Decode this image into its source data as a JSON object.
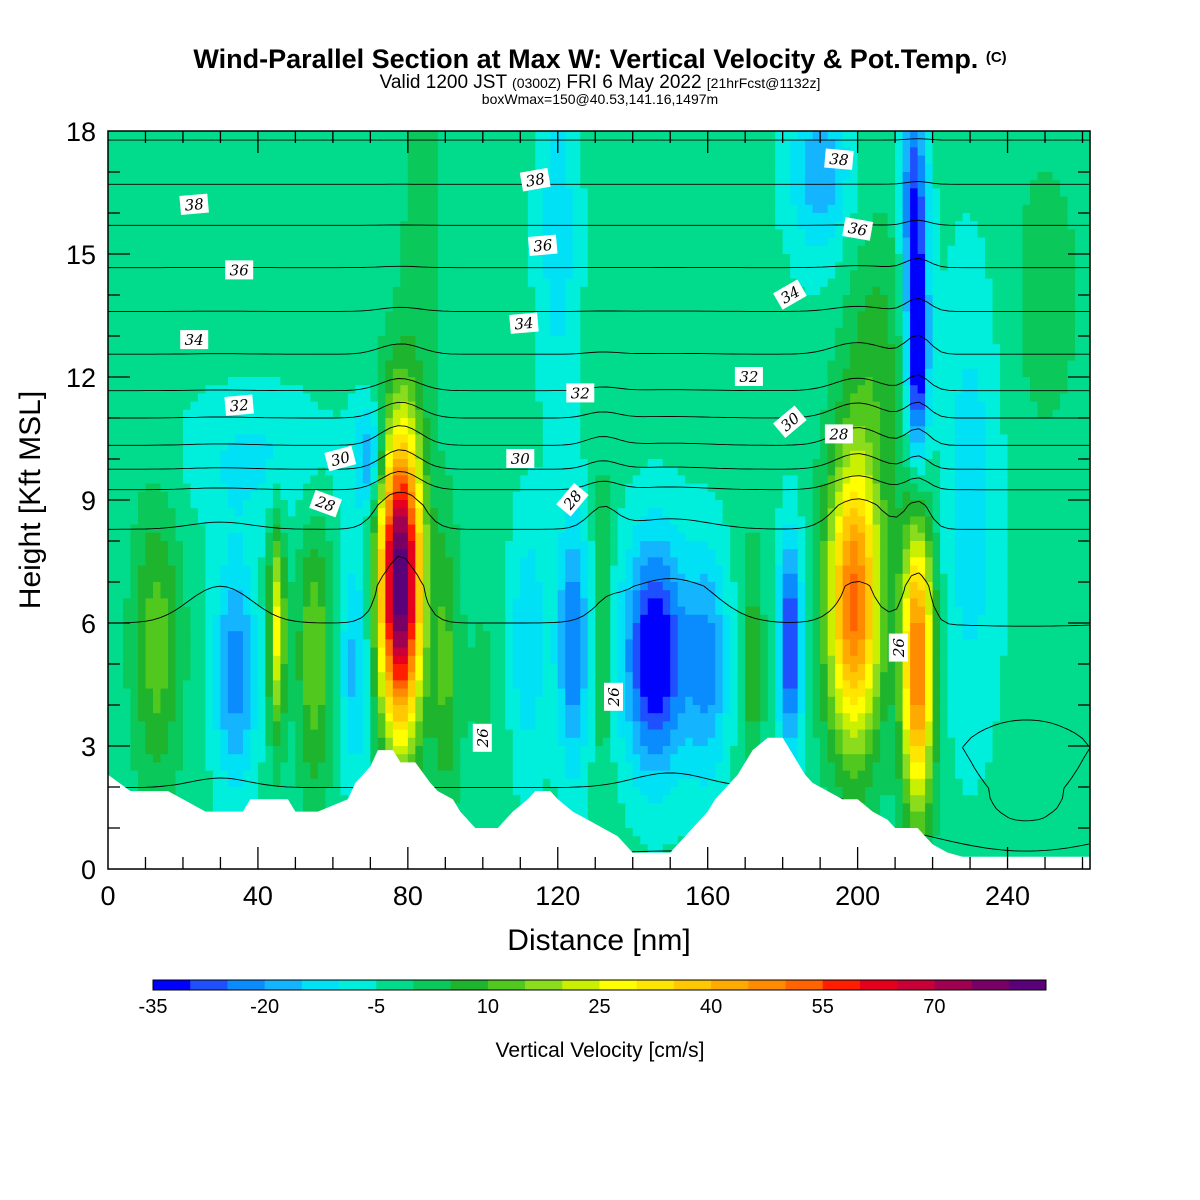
{
  "title": {
    "main": "Wind-Parallel Section at Max W: Vertical Velocity & Pot.Temp.",
    "mark": "(C)",
    "valid_prefix": "Valid 1200 JST",
    "valid_utc": "(0300Z)",
    "valid_date": "FRI 6 May 2022",
    "forecast": "[21hrFcst@1132z]",
    "boxinfo": "boxWmax=150@40.53,141.16,1497m"
  },
  "chart_data": {
    "type": "heatmap",
    "xlabel": "Distance [nm]",
    "ylabel": "Height [Kft MSL]",
    "xlim": [
      0,
      262
    ],
    "ylim": [
      0,
      18
    ],
    "x_ticks": [
      {
        "value": 0,
        "label": "0"
      },
      {
        "value": 40,
        "label": "40"
      },
      {
        "value": 80,
        "label": "80"
      },
      {
        "value": 120,
        "label": "120"
      },
      {
        "value": 160,
        "label": "160"
      },
      {
        "value": 200,
        "label": "200"
      },
      {
        "value": 240,
        "label": "240"
      }
    ],
    "y_ticks": [
      {
        "value": 0,
        "label": "0"
      },
      {
        "value": 3,
        "label": "3"
      },
      {
        "value": 6,
        "label": "6"
      },
      {
        "value": 9,
        "label": "9"
      },
      {
        "value": 12,
        "label": "12"
      },
      {
        "value": 15,
        "label": "15"
      },
      {
        "value": 18,
        "label": "18"
      }
    ],
    "colorbar": {
      "title": "Vertical Velocity [cm/s]",
      "min": -35,
      "max": 85,
      "colors": [
        "#0000ff",
        "#1f50ff",
        "#0a8cff",
        "#14b4ff",
        "#00e1f5",
        "#00eedc",
        "#00dc8c",
        "#0ac85a",
        "#1eb42d",
        "#50c81e",
        "#8cdc1e",
        "#c8f000",
        "#ffff00",
        "#ffe600",
        "#ffc800",
        "#ffaa00",
        "#ff8c00",
        "#ff6400",
        "#ff1e00",
        "#e6001e",
        "#c80037",
        "#a00050",
        "#780064",
        "#5a0078"
      ],
      "labels": [
        {
          "value": -35,
          "label": "-35"
        },
        {
          "value": -20,
          "label": "-20"
        },
        {
          "value": -5,
          "label": "-5"
        },
        {
          "value": 10,
          "label": "10"
        },
        {
          "value": 25,
          "label": "25"
        },
        {
          "value": 40,
          "label": "40"
        },
        {
          "value": 55,
          "label": "55"
        },
        {
          "value": 70,
          "label": "70"
        }
      ]
    },
    "terrain": [
      [
        0,
        2.3
      ],
      [
        3,
        2.1
      ],
      [
        6,
        1.9
      ],
      [
        16,
        1.9
      ],
      [
        20,
        1.7
      ],
      [
        26,
        1.4
      ],
      [
        30,
        1.4
      ],
      [
        34,
        1.4
      ],
      [
        36,
        1.4
      ],
      [
        38,
        1.7
      ],
      [
        48,
        1.7
      ],
      [
        50,
        1.4
      ],
      [
        56,
        1.4
      ],
      [
        64,
        1.7
      ],
      [
        66,
        2.1
      ],
      [
        68,
        2.3
      ],
      [
        70,
        2.5
      ],
      [
        72,
        2.9
      ],
      [
        76,
        2.9
      ],
      [
        78,
        2.6
      ],
      [
        82,
        2.6
      ],
      [
        86,
        2.1
      ],
      [
        88,
        1.9
      ],
      [
        92,
        1.7
      ],
      [
        94,
        1.4
      ],
      [
        98,
        1.0
      ],
      [
        104,
        1.0
      ],
      [
        108,
        1.4
      ],
      [
        112,
        1.7
      ],
      [
        114,
        1.9
      ],
      [
        118,
        1.9
      ],
      [
        120,
        1.7
      ],
      [
        124,
        1.4
      ],
      [
        128,
        1.2
      ],
      [
        132,
        1.0
      ],
      [
        136,
        0.8
      ],
      [
        140,
        0.4
      ],
      [
        150,
        0.4
      ],
      [
        152,
        0.6
      ],
      [
        154,
        0.8
      ],
      [
        156,
        1.0
      ],
      [
        158,
        1.2
      ],
      [
        160,
        1.4
      ],
      [
        162,
        1.7
      ],
      [
        164,
        1.9
      ],
      [
        166,
        2.1
      ],
      [
        168,
        2.3
      ],
      [
        170,
        2.6
      ],
      [
        172,
        2.9
      ],
      [
        176,
        3.2
      ],
      [
        180,
        3.2
      ],
      [
        182,
        2.9
      ],
      [
        184,
        2.6
      ],
      [
        186,
        2.3
      ],
      [
        188,
        2.1
      ],
      [
        192,
        1.9
      ],
      [
        196,
        1.7
      ],
      [
        200,
        1.7
      ],
      [
        204,
        1.4
      ],
      [
        208,
        1.2
      ],
      [
        210,
        1.0
      ],
      [
        216,
        1.0
      ],
      [
        220,
        0.6
      ],
      [
        224,
        0.4
      ],
      [
        228,
        0.3
      ],
      [
        262,
        0.3
      ]
    ],
    "w_field": {
      "background": -3,
      "features": [
        {
          "x": 13,
          "y": 5.5,
          "sx": 4.5,
          "sy": 2.5,
          "amp": 16
        },
        {
          "x": 34,
          "y": 4.8,
          "sx": 4,
          "sy": 2.0,
          "amp": -20
        },
        {
          "x": 45,
          "y": 5.8,
          "sx": 1.6,
          "sy": 1.8,
          "amp": 30
        },
        {
          "x": 55,
          "y": 5.2,
          "sx": 3.2,
          "sy": 2.3,
          "amp": 18
        },
        {
          "x": 66,
          "y": 5.0,
          "sx": 3,
          "sy": 2.0,
          "amp": -14
        },
        {
          "x": 78,
          "y": 7.0,
          "sx": 4,
          "sy": 2.6,
          "amp": 90
        },
        {
          "x": 70,
          "y": 10.0,
          "sx": 3,
          "sy": 1.0,
          "amp": -18
        },
        {
          "x": 90,
          "y": 5.0,
          "sx": 2.5,
          "sy": 2.5,
          "amp": 14
        },
        {
          "x": 100,
          "y": 4.5,
          "sx": 4,
          "sy": 2.0,
          "amp": 4
        },
        {
          "x": 112,
          "y": 5.5,
          "sx": 3.5,
          "sy": 2.2,
          "amp": -12
        },
        {
          "x": 124,
          "y": 5.5,
          "sx": 3,
          "sy": 2.2,
          "amp": -22
        },
        {
          "x": 132,
          "y": 6.0,
          "sx": 1.5,
          "sy": 2.5,
          "amp": 12
        },
        {
          "x": 146,
          "y": 5.2,
          "sx": 6,
          "sy": 2.0,
          "amp": -34
        },
        {
          "x": 160,
          "y": 5.0,
          "sx": 4,
          "sy": 2.0,
          "amp": -18
        },
        {
          "x": 172,
          "y": 5.0,
          "sx": 2,
          "sy": 2.0,
          "amp": 12
        },
        {
          "x": 182,
          "y": 5.5,
          "sx": 2.2,
          "sy": 1.8,
          "amp": -30
        },
        {
          "x": 199,
          "y": 6.5,
          "sx": 5,
          "sy": 2.5,
          "amp": 55
        },
        {
          "x": 216,
          "y": 5.0,
          "sx": 3,
          "sy": 2.5,
          "amp": 55
        },
        {
          "x": 216,
          "y": 12.5,
          "sx": 2,
          "sy": 2.0,
          "amp": -35
        },
        {
          "x": 215,
          "y": 16.5,
          "sx": 2.5,
          "sy": 2.0,
          "amp": -24
        },
        {
          "x": 190,
          "y": 17.0,
          "sx": 6,
          "sy": 1.5,
          "amp": -16
        },
        {
          "x": 120,
          "y": 15.5,
          "sx": 4,
          "sy": 3.0,
          "amp": -10
        },
        {
          "x": 84,
          "y": 15.5,
          "sx": 4,
          "sy": 3.0,
          "amp": 6
        },
        {
          "x": 230,
          "y": 9.0,
          "sx": 6,
          "sy": 4.0,
          "amp": -10
        },
        {
          "x": 205,
          "y": 12.5,
          "sx": 6,
          "sy": 2.5,
          "amp": 10
        },
        {
          "x": 40,
          "y": 10.0,
          "sx": 15,
          "sy": 1.2,
          "amp": -8
        },
        {
          "x": 250,
          "y": 14.0,
          "sx": 8,
          "sy": 3.0,
          "amp": 5
        }
      ]
    },
    "theta_field": {
      "contour_interval": 1,
      "label_interval": 2,
      "levels_min": 24,
      "levels_max": 40,
      "anchor": [
        [
          0,
          23.5
        ],
        [
          1,
          24.8
        ],
        [
          2,
          25.0
        ],
        [
          3,
          25.5
        ],
        [
          4,
          25.6
        ],
        [
          5,
          25.8
        ],
        [
          6,
          26.0
        ],
        [
          7,
          26.2
        ],
        [
          8,
          26.8
        ],
        [
          9,
          27.5
        ],
        [
          10,
          29.5
        ],
        [
          11,
          31.0
        ],
        [
          12,
          32.5
        ],
        [
          13,
          33.4
        ],
        [
          14,
          34.4
        ],
        [
          15,
          35.3
        ],
        [
          16,
          36.3
        ],
        [
          17,
          37.3
        ],
        [
          18,
          38.2
        ]
      ],
      "perturbations": [
        {
          "x": 78,
          "y": 9.5,
          "sx": 5,
          "sy": 2.0,
          "amp": -0.9
        },
        {
          "x": 132,
          "y": 9.5,
          "sx": 4,
          "sy": 1.5,
          "amp": -0.4
        },
        {
          "x": 200,
          "y": 10.0,
          "sx": 6,
          "sy": 2.0,
          "amp": -0.7
        },
        {
          "x": 216,
          "y": 10.5,
          "sx": 3,
          "sy": 3.0,
          "amp": -0.6
        },
        {
          "x": 245,
          "y": 1.5,
          "sx": 20,
          "sy": 1.5,
          "amp": 1.2
        },
        {
          "x": 150,
          "y": 5.5,
          "sx": 10,
          "sy": 3.0,
          "amp": -0.3
        },
        {
          "x": 30,
          "y": 5.5,
          "sx": 8,
          "sy": 3.0,
          "amp": -0.2
        }
      ]
    },
    "contour_labels": [
      {
        "text": "38",
        "x": 23,
        "y": 16.2,
        "angle": -5
      },
      {
        "text": "36",
        "x": 35,
        "y": 14.6,
        "angle": 0
      },
      {
        "text": "34",
        "x": 23,
        "y": 12.9,
        "angle": 0
      },
      {
        "text": "32",
        "x": 35,
        "y": 11.3,
        "angle": -5
      },
      {
        "text": "30",
        "x": 62,
        "y": 10.0,
        "angle": -15
      },
      {
        "text": "28",
        "x": 58,
        "y": 8.9,
        "angle": 20
      },
      {
        "text": "38",
        "x": 114,
        "y": 16.8,
        "angle": -10
      },
      {
        "text": "36",
        "x": 116,
        "y": 15.2,
        "angle": -5
      },
      {
        "text": "34",
        "x": 111,
        "y": 13.3,
        "angle": -5
      },
      {
        "text": "32",
        "x": 126,
        "y": 11.6,
        "angle": 0
      },
      {
        "text": "30",
        "x": 110,
        "y": 10.0,
        "angle": 0
      },
      {
        "text": "28",
        "x": 124,
        "y": 9.0,
        "angle": -50
      },
      {
        "text": "26",
        "x": 100,
        "y": 3.2,
        "angle": -90
      },
      {
        "text": "26",
        "x": 135,
        "y": 4.2,
        "angle": -90
      },
      {
        "text": "38",
        "x": 195,
        "y": 17.3,
        "angle": 5
      },
      {
        "text": "36",
        "x": 200,
        "y": 15.6,
        "angle": 10
      },
      {
        "text": "34",
        "x": 182,
        "y": 14.0,
        "angle": -30
      },
      {
        "text": "32",
        "x": 171,
        "y": 12.0,
        "angle": 0
      },
      {
        "text": "30",
        "x": 182,
        "y": 10.9,
        "angle": -40
      },
      {
        "text": "28",
        "x": 195,
        "y": 10.6,
        "angle": 0
      },
      {
        "text": "26",
        "x": 211,
        "y": 5.4,
        "angle": -90
      }
    ]
  }
}
